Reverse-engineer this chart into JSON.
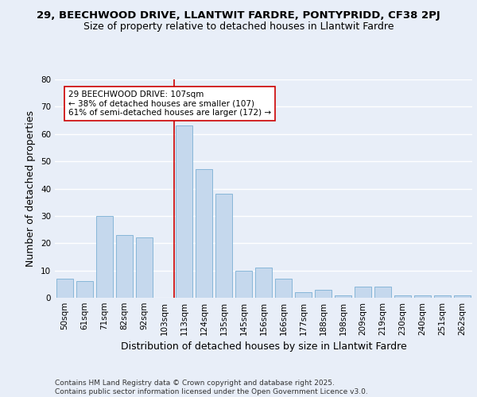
{
  "title_line1": "29, BEECHWOOD DRIVE, LLANTWIT FARDRE, PONTYPRIDD, CF38 2PJ",
  "title_line2": "Size of property relative to detached houses in Llantwit Fardre",
  "xlabel": "Distribution of detached houses by size in Llantwit Fardre",
  "ylabel": "Number of detached properties",
  "categories": [
    "50sqm",
    "61sqm",
    "71sqm",
    "82sqm",
    "92sqm",
    "103sqm",
    "113sqm",
    "124sqm",
    "135sqm",
    "145sqm",
    "156sqm",
    "166sqm",
    "177sqm",
    "188sqm",
    "198sqm",
    "209sqm",
    "219sqm",
    "230sqm",
    "240sqm",
    "251sqm",
    "262sqm"
  ],
  "values": [
    7,
    6,
    30,
    23,
    22,
    0,
    63,
    47,
    38,
    10,
    11,
    7,
    2,
    3,
    1,
    4,
    4,
    1,
    1,
    1,
    1
  ],
  "bar_color": "#c5d8ed",
  "bar_edge_color": "#7aafd4",
  "vline_index": 6,
  "vline_color": "#cc0000",
  "annotation_text": "29 BEECHWOOD DRIVE: 107sqm\n← 38% of detached houses are smaller (107)\n61% of semi-detached houses are larger (172) →",
  "annotation_box_color": "#ffffff",
  "annotation_box_edge": "#cc0000",
  "ylim": [
    0,
    80
  ],
  "yticks": [
    0,
    10,
    20,
    30,
    40,
    50,
    60,
    70,
    80
  ],
  "footer_text": "Contains HM Land Registry data © Crown copyright and database right 2025.\nContains public sector information licensed under the Open Government Licence v3.0.",
  "bg_color": "#e8eef8",
  "grid_color": "#ffffff",
  "title_fontsize": 9.5,
  "subtitle_fontsize": 9,
  "axis_label_fontsize": 9,
  "tick_fontsize": 7.5,
  "annotation_fontsize": 7.5,
  "footer_fontsize": 6.5
}
